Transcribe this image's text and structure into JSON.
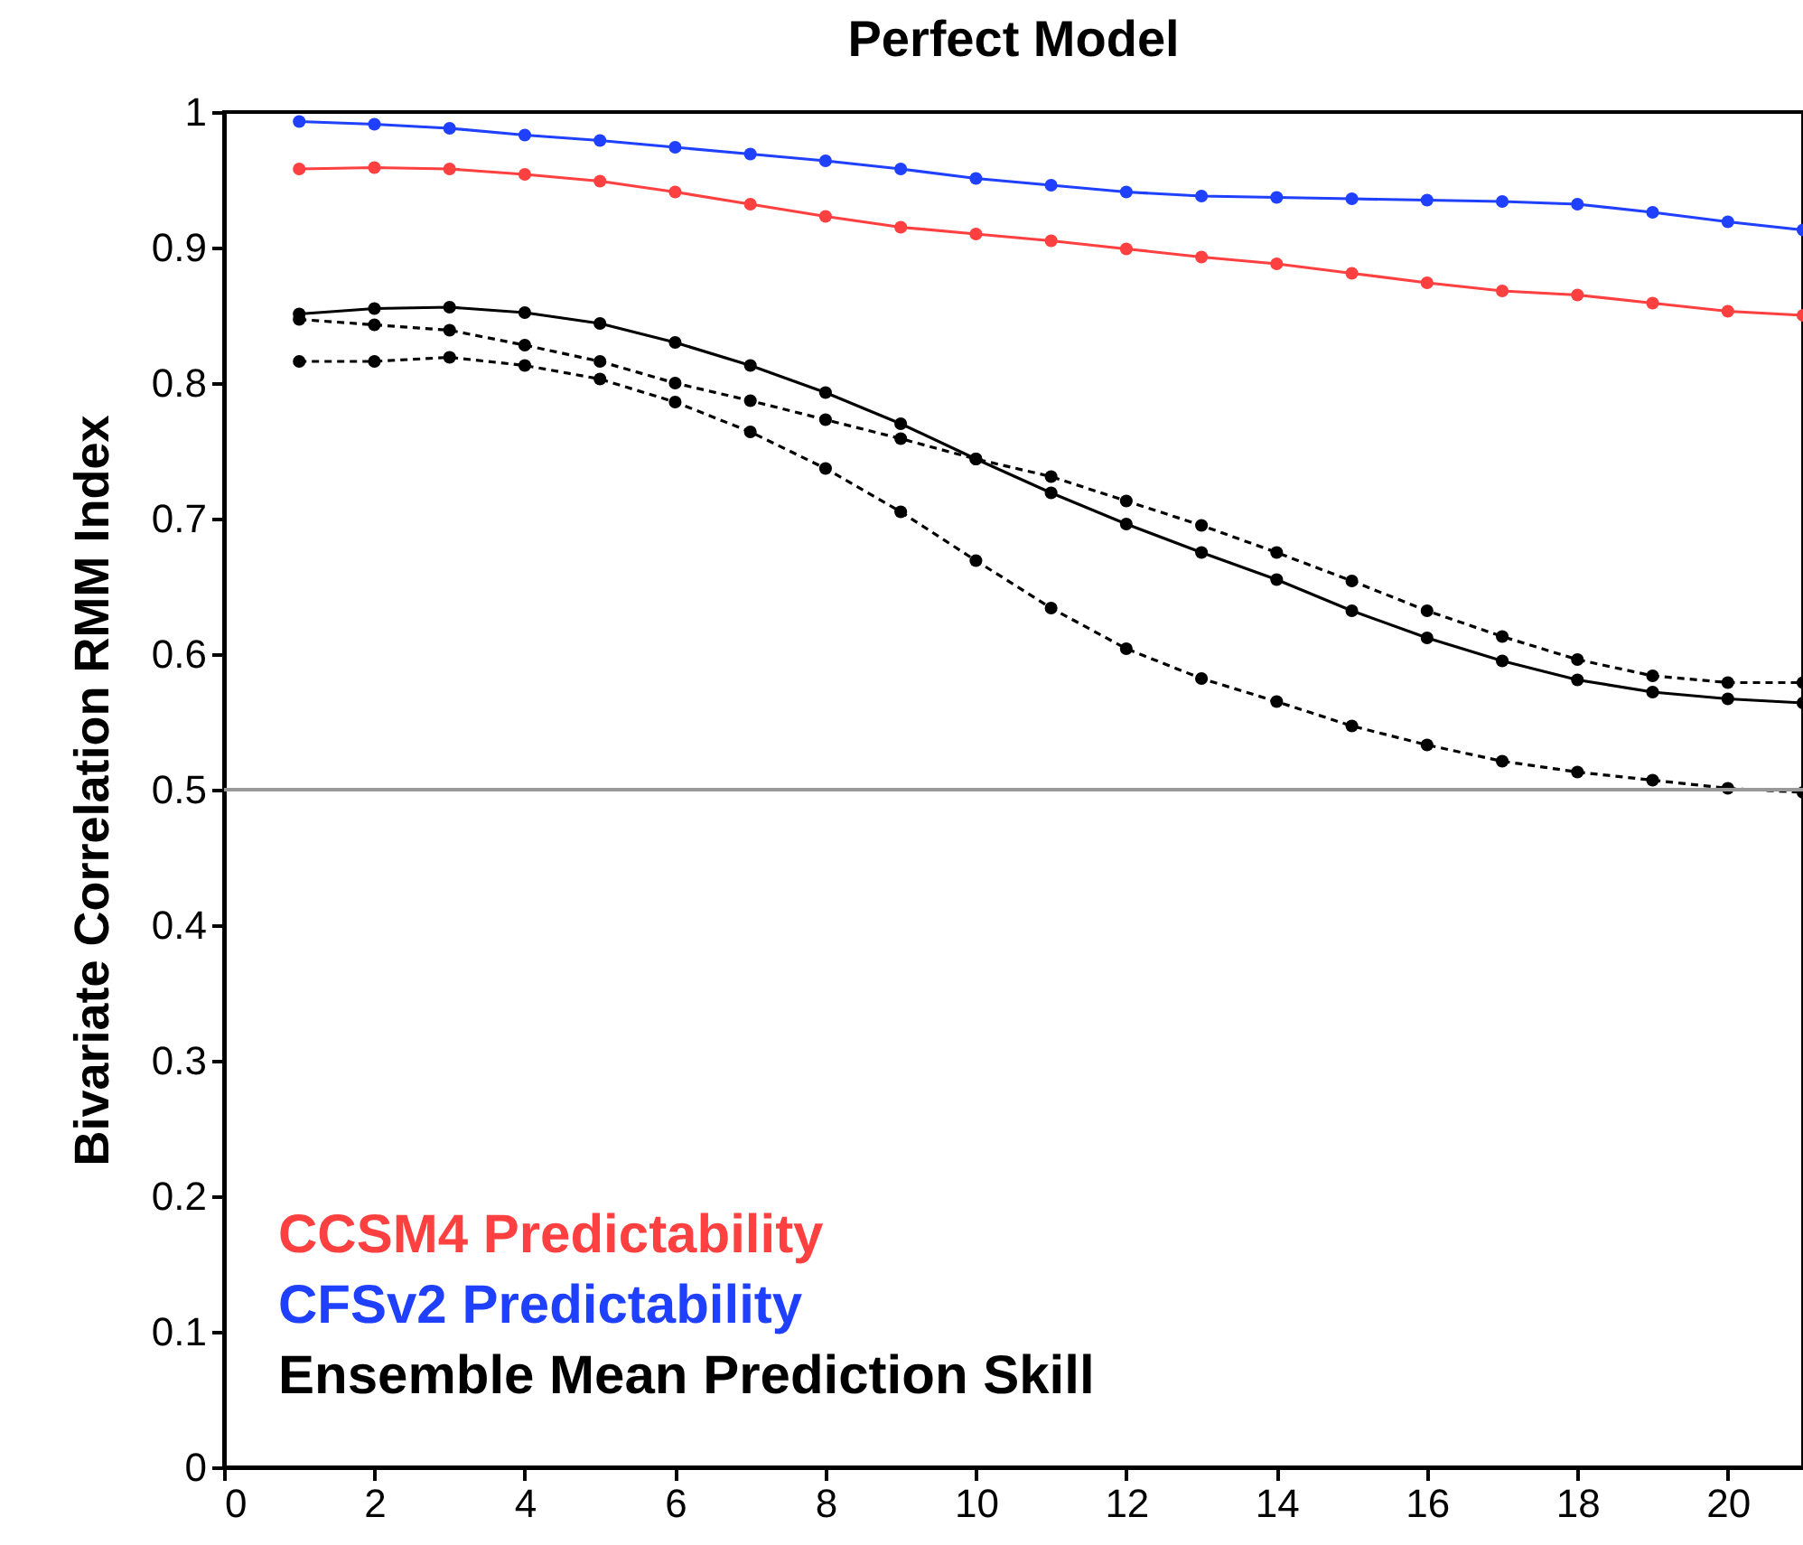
{
  "chart_data": {
    "type": "line",
    "title": "Perfect Model",
    "ylabel": "Bivariate Correlation RMM Index",
    "x": [
      1,
      2,
      3,
      4,
      5,
      6,
      7,
      8,
      9,
      10,
      11,
      12,
      13,
      14,
      15,
      16,
      17,
      18,
      19,
      20,
      21
    ],
    "series": [
      {
        "name": "CCSM4 Predictability",
        "color": "#ff4040",
        "line_style": "solid",
        "values": [
          0.958,
          0.959,
          0.958,
          0.954,
          0.949,
          0.941,
          0.932,
          0.923,
          0.915,
          0.91,
          0.905,
          0.899,
          0.893,
          0.888,
          0.881,
          0.874,
          0.868,
          0.865,
          0.859,
          0.853,
          0.85
        ]
      },
      {
        "name": "CFSv2 Predictability",
        "color": "#2040ff",
        "line_style": "solid",
        "values": [
          0.993,
          0.991,
          0.988,
          0.983,
          0.979,
          0.974,
          0.969,
          0.964,
          0.958,
          0.951,
          0.946,
          0.941,
          0.938,
          0.937,
          0.936,
          0.935,
          0.934,
          0.932,
          0.926,
          0.919,
          0.913
        ]
      },
      {
        "name": "Ensemble Mean Prediction Skill",
        "color": "#000000",
        "line_style": "solid",
        "values": [
          0.851,
          0.855,
          0.856,
          0.852,
          0.844,
          0.83,
          0.813,
          0.793,
          0.77,
          0.744,
          0.719,
          0.696,
          0.675,
          0.655,
          0.632,
          0.612,
          0.595,
          0.581,
          0.572,
          0.567,
          0.564
        ]
      },
      {
        "color": "#000000",
        "line_style": "dashed",
        "values": [
          0.847,
          0.843,
          0.839,
          0.828,
          0.816,
          0.8,
          0.787,
          0.773,
          0.759,
          0.744,
          0.731,
          0.713,
          0.695,
          0.675,
          0.654,
          0.632,
          0.613,
          0.596,
          0.584,
          0.579,
          0.579
        ]
      },
      {
        "color": "#000000",
        "line_style": "dashed",
        "values": [
          0.816,
          0.816,
          0.819,
          0.813,
          0.803,
          0.786,
          0.764,
          0.737,
          0.705,
          0.669,
          0.634,
          0.604,
          0.582,
          0.565,
          0.547,
          0.533,
          0.521,
          0.513,
          0.507,
          0.501,
          0.498
        ]
      }
    ],
    "ref_lines": [
      {
        "axis": "y",
        "value": 0.5,
        "color": "#999999"
      }
    ],
    "xlim": [
      0,
      21
    ],
    "xticks": [
      0,
      2,
      4,
      6,
      8,
      10,
      12,
      14,
      16,
      18,
      20
    ],
    "ylim": [
      0,
      1
    ],
    "yticks": [
      0,
      0.1,
      0.2,
      0.3,
      0.4,
      0.5,
      0.6,
      0.7,
      0.8,
      0.9,
      1
    ],
    "grid": false,
    "legend": "bottom left",
    "marker": "circle"
  }
}
